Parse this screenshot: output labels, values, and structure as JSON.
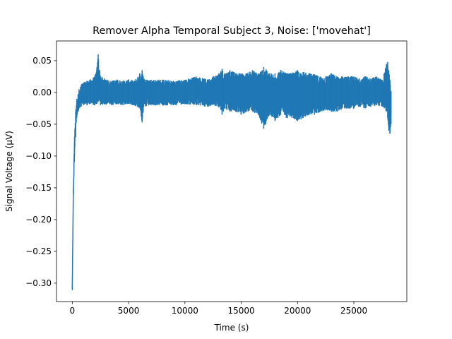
{
  "chart_data": {
    "type": "line",
    "title": "Remover Alpha Temporal Subject 3, Noise: ['movehat']",
    "xlabel": "Time (s)",
    "ylabel": "Signal Voltage (µV)",
    "xlim": [
      -1400,
      29700
    ],
    "ylim": [
      -0.329,
      0.081
    ],
    "x_ticks": [
      0,
      5000,
      10000,
      15000,
      20000,
      25000
    ],
    "x_tick_labels": [
      "0",
      "5000",
      "10000",
      "15000",
      "20000",
      "25000"
    ],
    "y_ticks": [
      0.05,
      0.0,
      -0.05,
      -0.1,
      -0.15,
      -0.2,
      -0.25,
      -0.3
    ],
    "y_tick_labels": [
      "0.05",
      "0.00",
      "−0.05",
      "−0.10",
      "−0.15",
      "−0.20",
      "−0.25",
      "−0.30"
    ],
    "grid": false,
    "legend": "none",
    "line_color": "#1f77b4",
    "series": [
      {
        "envelope": {
          "x": [
            0,
            100,
            200,
            300,
            400,
            600,
            800,
            1000,
            1300,
            1600,
            2000,
            2200,
            2300,
            2500,
            3000,
            3500,
            4000,
            4500,
            5000,
            5500,
            6000,
            6200,
            6300,
            6500,
            7000,
            8000,
            9000,
            10000,
            11000,
            12000,
            12500,
            13000,
            13300,
            13500,
            14000,
            14500,
            15000,
            15500,
            16000,
            16500,
            17000,
            17500,
            18000,
            18500,
            19000,
            19500,
            20000,
            20500,
            21000,
            21500,
            22000,
            22500,
            23000,
            23500,
            24000,
            24500,
            25000,
            25500,
            26000,
            26500,
            27000,
            27500,
            27700,
            27900,
            28000,
            28100,
            28200,
            28300
          ],
          "upper": [
            -0.305,
            -0.15,
            -0.07,
            -0.03,
            -0.01,
            0.005,
            0.012,
            0.015,
            0.018,
            0.02,
            0.025,
            0.04,
            0.06,
            0.025,
            0.02,
            0.018,
            0.02,
            0.018,
            0.02,
            0.018,
            0.03,
            0.035,
            0.025,
            0.02,
            0.02,
            0.02,
            0.018,
            0.02,
            0.025,
            0.02,
            0.025,
            0.03,
            0.037,
            0.03,
            0.035,
            0.03,
            0.03,
            0.03,
            0.035,
            0.03,
            0.04,
            0.03,
            0.03,
            0.035,
            0.03,
            0.03,
            0.035,
            0.032,
            0.03,
            0.028,
            0.025,
            0.025,
            0.03,
            0.025,
            0.025,
            0.025,
            0.025,
            0.022,
            0.025,
            0.022,
            0.025,
            0.02,
            0.03,
            0.045,
            0.048,
            0.035,
            0.02,
            0.002
          ],
          "lower": [
            -0.311,
            -0.16,
            -0.1,
            -0.07,
            -0.04,
            -0.025,
            -0.022,
            -0.02,
            -0.02,
            -0.018,
            -0.02,
            -0.018,
            -0.015,
            -0.02,
            -0.018,
            -0.02,
            -0.018,
            -0.02,
            -0.018,
            -0.02,
            -0.025,
            -0.047,
            -0.03,
            -0.022,
            -0.02,
            -0.02,
            -0.02,
            -0.018,
            -0.02,
            -0.022,
            -0.02,
            -0.022,
            -0.035,
            -0.025,
            -0.03,
            -0.03,
            -0.035,
            -0.03,
            -0.03,
            -0.035,
            -0.057,
            -0.035,
            -0.045,
            -0.035,
            -0.04,
            -0.04,
            -0.045,
            -0.04,
            -0.035,
            -0.035,
            -0.03,
            -0.028,
            -0.03,
            -0.03,
            -0.025,
            -0.025,
            -0.025,
            -0.022,
            -0.025,
            -0.022,
            -0.02,
            -0.022,
            -0.025,
            -0.03,
            -0.04,
            -0.06,
            -0.065,
            -0.05
          ]
        }
      }
    ]
  }
}
